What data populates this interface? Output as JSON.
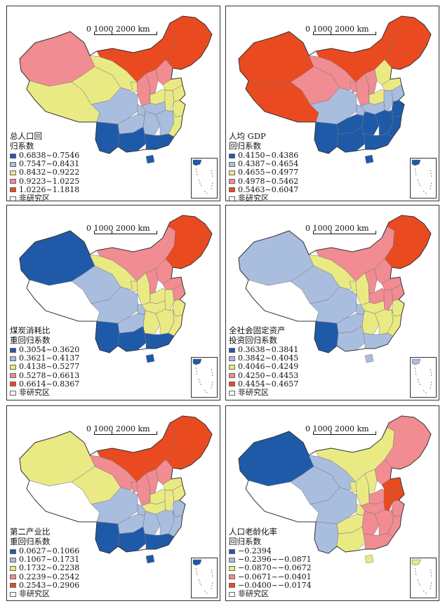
{
  "scale_label": "0   1000   2000 km",
  "colors": {
    "class1": "#1f5aa9",
    "class2": "#a9bddf",
    "class3": "#eaea84",
    "class4": "#f08c92",
    "class5": "#ea4a1f",
    "nodata": "#ffffff"
  },
  "panels": [
    {
      "title": "总人口回\n归系数",
      "legend": [
        "0.6838~0.7546",
        "0.7547~0.8431",
        "0.8432~0.9222",
        "0.9223~1.0225",
        "1.0226~1.1818"
      ],
      "no_data_label": "非研究区",
      "regions": {
        "xinjiang": 4,
        "tibet": 3,
        "qinghai": 3,
        "gansu": 3,
        "neimenggu": 5,
        "northeast": 5,
        "ningxia": 3,
        "shaanxi": 4,
        "shanxi": 4,
        "hebei": 4,
        "shandong": 3,
        "henan": 3,
        "sichuan": 2,
        "chongqing": 2,
        "hubei": 2,
        "anhui": 3,
        "jiangsu": 3,
        "zhejiang": 3,
        "yunnan": 1,
        "guizhou": 2,
        "hunan": 2,
        "jiangxi": 2,
        "fujian": 3,
        "guangxi": 1,
        "guangdong": 1,
        "hainan": 1
      }
    },
    {
      "title": "人均 GDP\n回归系数",
      "legend": [
        "0.4150~0.4386",
        "0.4387~0.4654",
        "0.4655~0.4977",
        "0.4978~0.5462",
        "0.5463~0.6047"
      ],
      "no_data_label": "非研究区",
      "regions": {
        "xinjiang": 5,
        "tibet": 5,
        "qinghai": 4,
        "gansu": 4,
        "neimenggu": 5,
        "northeast": 5,
        "ningxia": 4,
        "shaanxi": 4,
        "shanxi": 4,
        "hebei": 3,
        "shandong": 3,
        "henan": 3,
        "sichuan": 2,
        "chongqing": 2,
        "hubei": 2,
        "anhui": 2,
        "jiangsu": 2,
        "zhejiang": 1,
        "yunnan": 1,
        "guizhou": 1,
        "hunan": 1,
        "jiangxi": 1,
        "fujian": 1,
        "guangxi": 1,
        "guangdong": 1,
        "hainan": 1
      }
    },
    {
      "title": "煤炭消耗比\n重回归系数",
      "legend": [
        "0.3054~0.3620",
        "0.3621~0.4137",
        "0.4138~0.5277",
        "0.5278~0.6613",
        "0.6614~0.8367"
      ],
      "no_data_label": "非研究区",
      "regions": {
        "xinjiang": 1,
        "tibet": 0,
        "qinghai": 2,
        "gansu": 3,
        "neimenggu": 4,
        "northeast": 5,
        "ningxia": 3,
        "shaanxi": 3,
        "shanxi": 4,
        "hebei": 4,
        "shandong": 4,
        "henan": 3,
        "sichuan": 2,
        "chongqing": 2,
        "hubei": 3,
        "anhui": 3,
        "jiangsu": 4,
        "zhejiang": 3,
        "yunnan": 1,
        "guizhou": 2,
        "hunan": 3,
        "jiangxi": 3,
        "fujian": 3,
        "guangxi": 1,
        "guangdong": 1,
        "hainan": 1
      }
    },
    {
      "title": "全社会固定资产\n投资回归系数",
      "legend": [
        "0.3638~0.3841",
        "0.3842~0.4045",
        "0.4046~0.4249",
        "0.4250~0.4453",
        "0.4454~0.4657"
      ],
      "no_data_label": "非研究区",
      "regions": {
        "xinjiang": 2,
        "tibet": 0,
        "qinghai": 2,
        "gansu": 3,
        "neimenggu": 4,
        "northeast": 5,
        "ningxia": 3,
        "shaanxi": 3,
        "shanxi": 4,
        "hebei": 4,
        "shandong": 4,
        "henan": 4,
        "sichuan": 2,
        "chongqing": 2,
        "hubei": 3,
        "anhui": 4,
        "jiangsu": 4,
        "zhejiang": 3,
        "yunnan": 1,
        "guizhou": 2,
        "hunan": 3,
        "jiangxi": 3,
        "fujian": 3,
        "guangxi": 2,
        "guangdong": 2,
        "hainan": 2
      }
    },
    {
      "title": "第二产业比\n重回归系数",
      "legend": [
        "0.0627~0.1066",
        "0.1067~0.1731",
        "0.1732~0.2238",
        "0.2239~0.2542",
        "0.2543~0.2906"
      ],
      "no_data_label": "非研究区",
      "regions": {
        "xinjiang": 3,
        "tibet": 0,
        "qinghai": 3,
        "gansu": 4,
        "neimenggu": 5,
        "northeast": 5,
        "ningxia": 4,
        "shaanxi": 4,
        "shanxi": 4,
        "hebei": 4,
        "shandong": 3,
        "henan": 3,
        "sichuan": 2,
        "chongqing": 2,
        "hubei": 3,
        "anhui": 3,
        "jiangsu": 3,
        "zhejiang": 2,
        "yunnan": 1,
        "guizhou": 2,
        "hunan": 2,
        "jiangxi": 2,
        "fujian": 2,
        "guangxi": 1,
        "guangdong": 1,
        "hainan": 1
      }
    },
    {
      "title": "人口老龄化率\n回归系数",
      "legend": [
        "−0.2394",
        "−0.2396~−0.0871",
        "−0.0870~−0.0672",
        "−0.0671~−0.0401",
        "−0.0400~−0.0174"
      ],
      "no_data_label": "非研究区",
      "regions": {
        "xinjiang": 1,
        "tibet": 0,
        "qinghai": 2,
        "gansu": 2,
        "neimenggu": 3,
        "northeast": 4,
        "ningxia": 3,
        "shaanxi": 3,
        "shanxi": 3,
        "hebei": 4,
        "shandong": 5,
        "henan": 4,
        "sichuan": 2,
        "chongqing": 3,
        "hubei": 4,
        "anhui": 5,
        "jiangsu": 5,
        "zhejiang": 4,
        "yunnan": 2,
        "guizhou": 3,
        "hunan": 4,
        "jiangxi": 4,
        "fujian": 4,
        "guangxi": 3,
        "guangdong": 4,
        "hainan": 3
      }
    }
  ]
}
